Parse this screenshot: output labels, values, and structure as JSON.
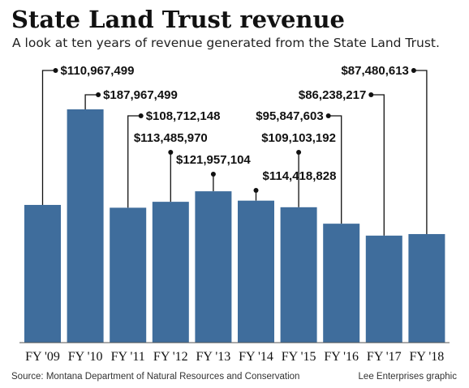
{
  "title": "State Land Trust revenue",
  "subtitle": "A look at ten years of revenue generated from the State Land Trust.",
  "source": "Source: Montana Department of Natural Resources and Conservation",
  "credit": "Lee Enterprises graphic",
  "colors": {
    "bar": "#3f6d9c",
    "leader": "#111111",
    "baseline": "#555555"
  },
  "chart_data": {
    "type": "bar",
    "categories": [
      "FY '09",
      "FY '10",
      "FY '11",
      "FY '12",
      "FY '13",
      "FY '14",
      "FY '15",
      "FY '16",
      "FY '17",
      "FY '18"
    ],
    "values": [
      110967499,
      187967499,
      108712148,
      113485970,
      121957104,
      114418828,
      109103192,
      95847603,
      86238217,
      87480613
    ],
    "value_labels": [
      "$110,967,499",
      "$187,967,499",
      "$108,712,148",
      "$113,485,970",
      "$121,957,104",
      "$114,418,828",
      "$109,103,192",
      "$95,847,603",
      "$86,238,217",
      "$87,480,613"
    ],
    "xlabel": "",
    "ylabel": "",
    "ylim": [
      0,
      200000000
    ],
    "grid": false,
    "legend": "none"
  }
}
